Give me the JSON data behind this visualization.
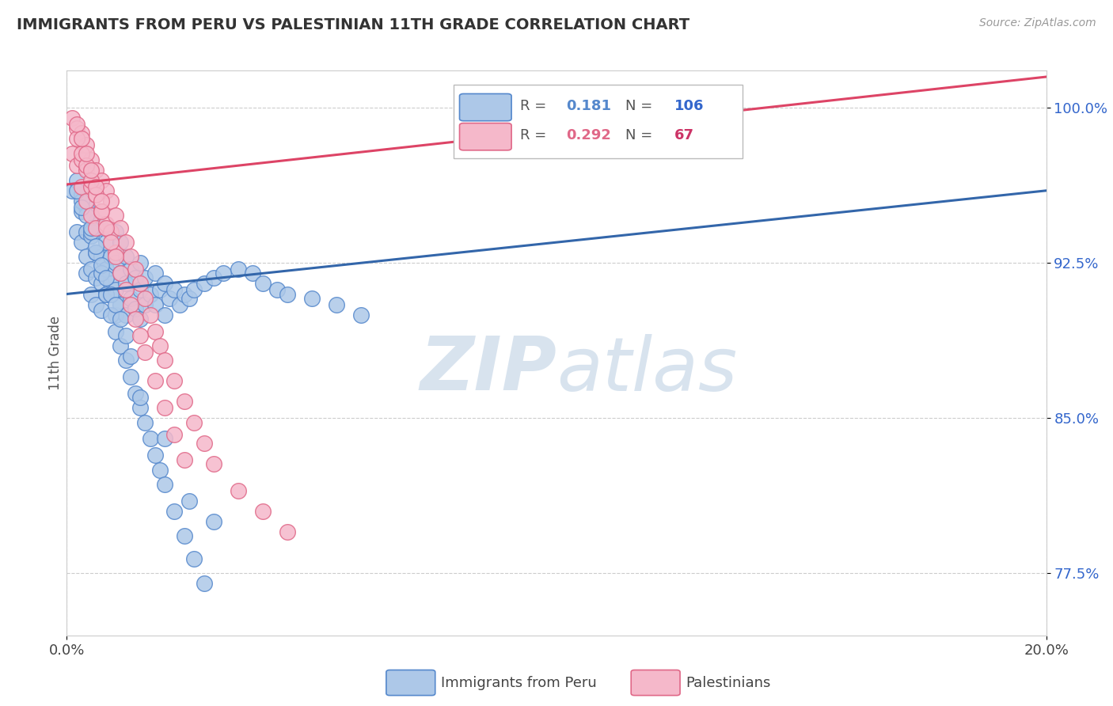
{
  "title": "IMMIGRANTS FROM PERU VS PALESTINIAN 11TH GRADE CORRELATION CHART",
  "source_text": "Source: ZipAtlas.com",
  "xlabel_blue": "Immigrants from Peru",
  "xlabel_pink": "Palestinians",
  "ylabel": "11th Grade",
  "xlim": [
    0.0,
    0.2
  ],
  "ylim": [
    0.745,
    1.018
  ],
  "xticks": [
    0.0,
    0.2
  ],
  "xticklabels": [
    "0.0%",
    "20.0%"
  ],
  "yticks": [
    0.775,
    0.85,
    0.925,
    1.0
  ],
  "yticklabels": [
    "77.5%",
    "85.0%",
    "92.5%",
    "100.0%"
  ],
  "R_blue": 0.181,
  "N_blue": 106,
  "R_pink": 0.292,
  "N_pink": 67,
  "blue_color": "#adc8e8",
  "blue_edge": "#5588cc",
  "pink_color": "#f5b8ca",
  "pink_edge": "#e06888",
  "blue_line_color": "#3366aa",
  "pink_line_color": "#dd4466",
  "blue_trend_x0": 0.0,
  "blue_trend_y0": 0.91,
  "blue_trend_x1": 0.2,
  "blue_trend_y1": 0.96,
  "pink_trend_x0": 0.0,
  "pink_trend_y0": 0.963,
  "pink_trend_x1": 0.2,
  "pink_trend_y1": 1.015,
  "watermark_color": "#c8d8e8",
  "blue_scatter_x": [
    0.001,
    0.002,
    0.002,
    0.003,
    0.003,
    0.003,
    0.004,
    0.004,
    0.004,
    0.004,
    0.005,
    0.005,
    0.005,
    0.005,
    0.006,
    0.006,
    0.006,
    0.006,
    0.007,
    0.007,
    0.007,
    0.007,
    0.008,
    0.008,
    0.008,
    0.009,
    0.009,
    0.01,
    0.01,
    0.01,
    0.01,
    0.011,
    0.011,
    0.011,
    0.012,
    0.012,
    0.012,
    0.013,
    0.013,
    0.014,
    0.014,
    0.015,
    0.015,
    0.015,
    0.016,
    0.016,
    0.017,
    0.018,
    0.018,
    0.019,
    0.02,
    0.02,
    0.021,
    0.022,
    0.023,
    0.024,
    0.025,
    0.026,
    0.028,
    0.03,
    0.032,
    0.035,
    0.038,
    0.04,
    0.043,
    0.045,
    0.05,
    0.055,
    0.06,
    0.003,
    0.004,
    0.005,
    0.006,
    0.007,
    0.008,
    0.009,
    0.01,
    0.011,
    0.012,
    0.013,
    0.014,
    0.015,
    0.016,
    0.017,
    0.018,
    0.019,
    0.02,
    0.022,
    0.024,
    0.026,
    0.028,
    0.002,
    0.003,
    0.005,
    0.006,
    0.007,
    0.008,
    0.009,
    0.01,
    0.011,
    0.012,
    0.013,
    0.015,
    0.02,
    0.025,
    0.03
  ],
  "blue_scatter_y": [
    0.96,
    0.965,
    0.94,
    0.958,
    0.95,
    0.935,
    0.952,
    0.94,
    0.928,
    0.92,
    0.948,
    0.938,
    0.922,
    0.91,
    0.945,
    0.93,
    0.918,
    0.905,
    0.942,
    0.928,
    0.915,
    0.902,
    0.935,
    0.922,
    0.91,
    0.928,
    0.915,
    0.94,
    0.925,
    0.912,
    0.9,
    0.935,
    0.92,
    0.905,
    0.928,
    0.915,
    0.9,
    0.922,
    0.908,
    0.918,
    0.903,
    0.925,
    0.912,
    0.898,
    0.918,
    0.905,
    0.91,
    0.92,
    0.905,
    0.912,
    0.915,
    0.9,
    0.908,
    0.912,
    0.905,
    0.91,
    0.908,
    0.912,
    0.915,
    0.918,
    0.92,
    0.922,
    0.92,
    0.915,
    0.912,
    0.91,
    0.908,
    0.905,
    0.9,
    0.955,
    0.948,
    0.94,
    0.93,
    0.92,
    0.91,
    0.9,
    0.892,
    0.885,
    0.878,
    0.87,
    0.862,
    0.855,
    0.848,
    0.84,
    0.832,
    0.825,
    0.818,
    0.805,
    0.793,
    0.782,
    0.77,
    0.96,
    0.952,
    0.942,
    0.933,
    0.924,
    0.918,
    0.91,
    0.905,
    0.898,
    0.89,
    0.88,
    0.86,
    0.84,
    0.81,
    0.8
  ],
  "pink_scatter_x": [
    0.001,
    0.001,
    0.002,
    0.002,
    0.003,
    0.003,
    0.003,
    0.004,
    0.004,
    0.004,
    0.005,
    0.005,
    0.005,
    0.006,
    0.006,
    0.006,
    0.007,
    0.007,
    0.008,
    0.008,
    0.009,
    0.009,
    0.01,
    0.01,
    0.011,
    0.012,
    0.013,
    0.014,
    0.015,
    0.016,
    0.017,
    0.018,
    0.019,
    0.02,
    0.022,
    0.024,
    0.026,
    0.028,
    0.03,
    0.035,
    0.04,
    0.045,
    0.002,
    0.003,
    0.004,
    0.005,
    0.006,
    0.007,
    0.008,
    0.009,
    0.01,
    0.011,
    0.012,
    0.013,
    0.014,
    0.015,
    0.016,
    0.018,
    0.02,
    0.022,
    0.024,
    0.002,
    0.003,
    0.004,
    0.005,
    0.006,
    0.007
  ],
  "pink_scatter_y": [
    0.995,
    0.978,
    0.99,
    0.972,
    0.988,
    0.975,
    0.962,
    0.982,
    0.97,
    0.955,
    0.975,
    0.962,
    0.948,
    0.97,
    0.958,
    0.942,
    0.965,
    0.95,
    0.96,
    0.944,
    0.955,
    0.94,
    0.948,
    0.93,
    0.942,
    0.935,
    0.928,
    0.922,
    0.915,
    0.908,
    0.9,
    0.892,
    0.885,
    0.878,
    0.868,
    0.858,
    0.848,
    0.838,
    0.828,
    0.815,
    0.805,
    0.795,
    0.985,
    0.978,
    0.972,
    0.965,
    0.958,
    0.95,
    0.942,
    0.935,
    0.928,
    0.92,
    0.912,
    0.905,
    0.898,
    0.89,
    0.882,
    0.868,
    0.855,
    0.842,
    0.83,
    0.992,
    0.985,
    0.978,
    0.97,
    0.962,
    0.955
  ]
}
